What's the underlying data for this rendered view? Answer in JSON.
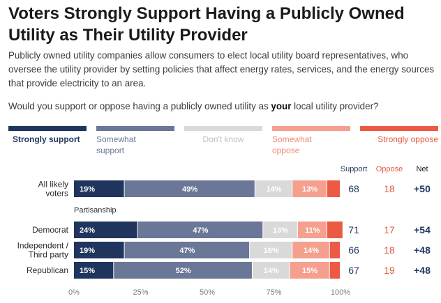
{
  "title": "Voters Strongly Support Having a Publicly Owned Utility as Their Utility Provider",
  "description": "Publicly owned utility companies allow consumers to elect local utility board representatives, who oversee the utility provider by setting policies that affect energy rates, services, and the energy sources that provide electricity to an area.",
  "question": {
    "before": "Would you support or oppose having a publicly owned utility as ",
    "emphasis": "your",
    "after": " local utility provider?"
  },
  "colors": {
    "strongly_support": "#1f355e",
    "somewhat_support": "#6b7797",
    "dont_know": "#d9d9d9",
    "somewhat_oppose": "#f5a08e",
    "strongly_oppose": "#ec5a43",
    "support_text": "#1f355e",
    "oppose_text": "#e2583e"
  },
  "columns": {
    "support": "Support",
    "oppose": "Oppose",
    "net": "Net"
  },
  "group_label": "Partisanship",
  "chart_data": {
    "type": "bar",
    "orientation": "horizontal",
    "stacked": true,
    "categories": [
      "All likely voters",
      "Democrat",
      "Independent / Third party",
      "Republican"
    ],
    "series": [
      {
        "name": "Strongly support",
        "values": [
          19,
          24,
          19,
          15
        ],
        "labels": [
          "19%",
          "24%",
          "19%",
          "15%"
        ]
      },
      {
        "name": "Somewhat support",
        "values": [
          49,
          47,
          47,
          52
        ],
        "labels": [
          "49%",
          "47%",
          "47%",
          "52%"
        ]
      },
      {
        "name": "Don't know",
        "values": [
          14,
          13,
          16,
          14
        ],
        "labels": [
          "14%",
          "13%",
          "16%",
          "14%"
        ]
      },
      {
        "name": "Somewhat oppose",
        "values": [
          13,
          11,
          14,
          15
        ],
        "labels": [
          "13%",
          "11%",
          "14%",
          "15%"
        ]
      },
      {
        "name": "Strongly oppose",
        "values": [
          5,
          6,
          4,
          4
        ],
        "labels": [
          "",
          "",
          "",
          ""
        ]
      }
    ],
    "support": [
      68,
      71,
      66,
      67
    ],
    "oppose": [
      18,
      17,
      18,
      19
    ],
    "net": [
      "+50",
      "+54",
      "+48",
      "+48"
    ],
    "xlim": [
      0,
      100
    ],
    "xticks": [
      "0%",
      "25%",
      "50%",
      "75%",
      "100%"
    ],
    "legend_placement": "top"
  }
}
